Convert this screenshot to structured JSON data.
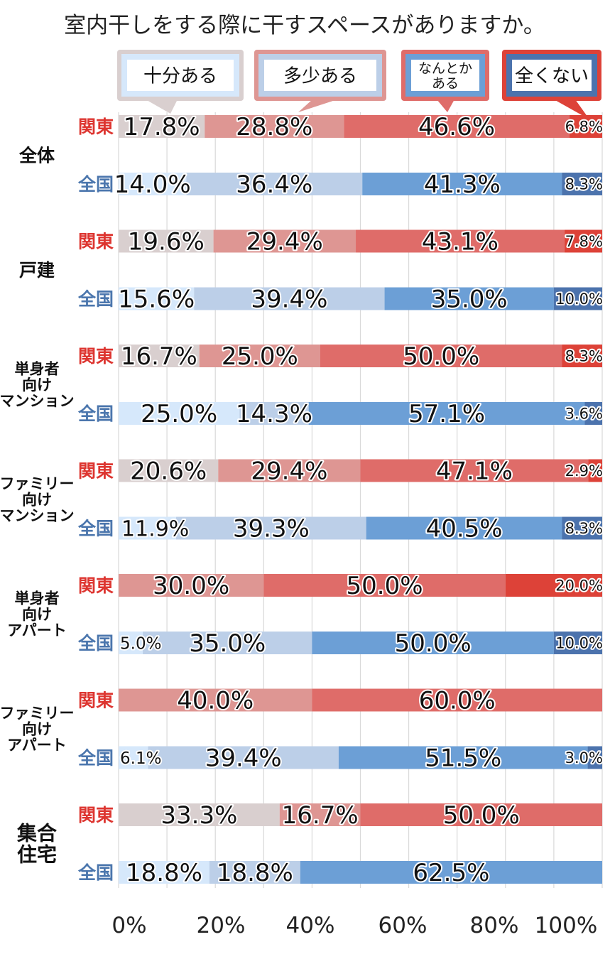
{
  "chart_data": {
    "type": "bar",
    "orientation": "horizontal",
    "stacked": true,
    "normalized": true,
    "title": "室内干しをする際に干すスペースがありますか。",
    "legend": [
      "十分ある",
      "多少ある",
      "なんとか\nある",
      "全くない"
    ],
    "x_ticks": [
      "0%",
      "20%",
      "40%",
      "60%",
      "80%",
      "100%"
    ],
    "xlim": [
      0,
      100
    ],
    "groups": [
      {
        "name": "全体",
        "rows": [
          {
            "region": "関東",
            "values": [
              17.8,
              28.8,
              46.6,
              6.8
            ],
            "labels": [
              "17.8%",
              "28.8%",
              "46.6%",
              "6.8%"
            ]
          },
          {
            "region": "全国",
            "values": [
              14.0,
              36.4,
              41.3,
              8.3
            ],
            "labels": [
              "14.0%",
              "36.4%",
              "41.3%",
              "8.3%"
            ]
          }
        ]
      },
      {
        "name": "戸建",
        "rows": [
          {
            "region": "関東",
            "values": [
              19.6,
              29.4,
              43.1,
              7.8
            ],
            "labels": [
              "19.6%",
              "29.4%",
              "43.1%",
              "7.8%"
            ]
          },
          {
            "region": "全国",
            "values": [
              15.6,
              39.4,
              35.0,
              10.0
            ],
            "labels": [
              "15.6%",
              "39.4%",
              "35.0%",
              "10.0%"
            ]
          }
        ]
      },
      {
        "name": "単身者\n向け\nマンション",
        "rows": [
          {
            "region": "関東",
            "values": [
              16.7,
              25.0,
              50.0,
              8.3
            ],
            "labels": [
              "16.7%",
              "25.0%",
              "50.0%",
              "8.3%"
            ]
          },
          {
            "region": "全国",
            "values": [
              25.0,
              14.3,
              57.1,
              3.6
            ],
            "labels": [
              "25.0%",
              "14.3%",
              "57.1%",
              "3.6%"
            ]
          }
        ]
      },
      {
        "name": "ファミリー\n向け\nマンション",
        "rows": [
          {
            "region": "関東",
            "values": [
              20.6,
              29.4,
              47.1,
              2.9
            ],
            "labels": [
              "20.6%",
              "29.4%",
              "47.1%",
              "2.9%"
            ]
          },
          {
            "region": "全国",
            "values": [
              11.9,
              39.3,
              40.5,
              8.3
            ],
            "labels": [
              "11.9%",
              "39.3%",
              "40.5%",
              "8.3%"
            ]
          }
        ]
      },
      {
        "name": "単身者\n向け\nアパート",
        "rows": [
          {
            "region": "関東",
            "values": [
              0,
              30.0,
              50.0,
              20.0
            ],
            "labels": [
              "",
              "30.0%",
              "50.0%",
              "20.0%"
            ]
          },
          {
            "region": "全国",
            "values": [
              5.0,
              35.0,
              50.0,
              10.0
            ],
            "labels": [
              "5.0%",
              "35.0%",
              "50.0%",
              "10.0%"
            ]
          }
        ]
      },
      {
        "name": "ファミリー\n向け\nアパート",
        "rows": [
          {
            "region": "関東",
            "values": [
              0,
              40.0,
              60.0,
              0
            ],
            "labels": [
              "",
              "40.0%",
              "60.0%",
              ""
            ]
          },
          {
            "region": "全国",
            "values": [
              6.1,
              39.4,
              51.5,
              3.0
            ],
            "labels": [
              "6.1%",
              "39.4%",
              "51.5%",
              "3.0%"
            ]
          }
        ]
      },
      {
        "name": "集合\n住宅",
        "rows": [
          {
            "region": "関東",
            "values": [
              33.3,
              16.7,
              50.0,
              0
            ],
            "labels": [
              "33.3%",
              "16.7%",
              "50.0%",
              ""
            ]
          },
          {
            "region": "全国",
            "values": [
              18.8,
              18.8,
              62.5,
              0
            ],
            "labels": [
              "18.8%",
              "18.8%",
              "62.5%",
              ""
            ]
          }
        ]
      }
    ],
    "colors": {
      "kanto": [
        "#d9cfcf",
        "#de9693",
        "#df6c69",
        "#dd4238"
      ],
      "zenkoku": [
        "#d6e8fb",
        "#bccfe8",
        "#6c9fd6",
        "#4c73ad"
      ],
      "kanto_label": "#dd3530",
      "zenkoku_label": "#4b76ad",
      "grid": "#d9d9d9"
    }
  }
}
